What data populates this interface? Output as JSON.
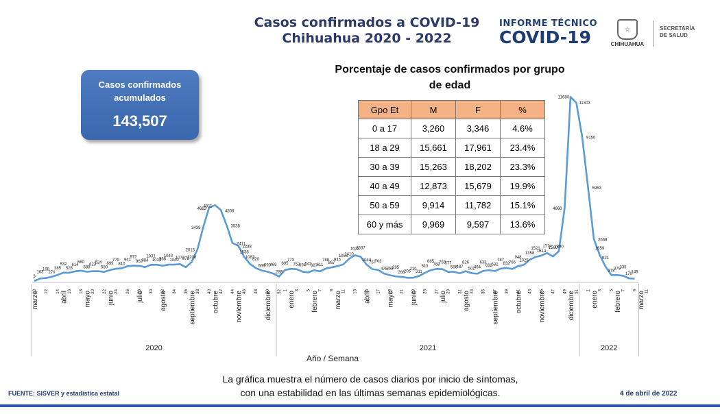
{
  "header": {
    "title_line1": "Casos confirmados a COVID-19",
    "title_line2": "Chihuahua 2020 - 2022",
    "informe_line1": "INFORME TÉCNICO",
    "informe_line2": "COVID-19",
    "logo_text": "CHIHUAHUA",
    "secretaria_line1": "SECRETARÍA",
    "secretaria_line2": "DE SALUD"
  },
  "total": {
    "label": "Casos confirmados acumulados",
    "value": "143,507"
  },
  "age_table": {
    "title": "Porcentaje de casos confirmados por grupo de edad",
    "headers": [
      "Gpo Et",
      "M",
      "F",
      "%"
    ],
    "rows": [
      [
        "0 a 17",
        "3,260",
        "3,346",
        "4.6%"
      ],
      [
        "18 a 29",
        "15,661",
        "17,961",
        "23.4%"
      ],
      [
        "30 a 39",
        "15,263",
        "18,202",
        "23.3%"
      ],
      [
        "40 a 49",
        "12,873",
        "15,679",
        "19.9%"
      ],
      [
        "50 a 59",
        "9,914",
        "11,782",
        "15.1%"
      ],
      [
        "60 y más",
        "9,969",
        "9,597",
        "13.6%"
      ]
    ]
  },
  "chart_data": {
    "type": "line",
    "title": "",
    "xlabel": "Año / Semana",
    "ylabel": "",
    "color": "#5b9bd5",
    "ylim": [
      0,
      11800
    ],
    "years": [
      {
        "label": "2020",
        "start": 0,
        "end": 42
      },
      {
        "label": "2021",
        "start": 42,
        "end": 94
      },
      {
        "label": "2022",
        "start": 94,
        "end": 107
      }
    ],
    "week_ticks": [
      {
        "i": 0,
        "t": "10"
      },
      {
        "i": 2,
        "t": "12"
      },
      {
        "i": 4,
        "t": "14"
      },
      {
        "i": 6,
        "t": "16"
      },
      {
        "i": 8,
        "t": "18"
      },
      {
        "i": 10,
        "t": "20"
      },
      {
        "i": 12,
        "t": "22"
      },
      {
        "i": 14,
        "t": "24"
      },
      {
        "i": 16,
        "t": "26"
      },
      {
        "i": 18,
        "t": "28"
      },
      {
        "i": 20,
        "t": "30"
      },
      {
        "i": 22,
        "t": "32"
      },
      {
        "i": 24,
        "t": "34"
      },
      {
        "i": 26,
        "t": "36"
      },
      {
        "i": 28,
        "t": "38"
      },
      {
        "i": 30,
        "t": "40"
      },
      {
        "i": 32,
        "t": "42"
      },
      {
        "i": 34,
        "t": "44"
      },
      {
        "i": 36,
        "t": "46"
      },
      {
        "i": 38,
        "t": "48"
      },
      {
        "i": 40,
        "t": "50"
      },
      {
        "i": 42,
        "t": "52"
      },
      {
        "i": 43,
        "t": "1"
      },
      {
        "i": 45,
        "t": "3"
      },
      {
        "i": 47,
        "t": "5"
      },
      {
        "i": 49,
        "t": "7"
      },
      {
        "i": 51,
        "t": "9"
      },
      {
        "i": 53,
        "t": "11"
      },
      {
        "i": 55,
        "t": "13"
      },
      {
        "i": 57,
        "t": "15"
      },
      {
        "i": 59,
        "t": "17"
      },
      {
        "i": 61,
        "t": "19"
      },
      {
        "i": 63,
        "t": "21"
      },
      {
        "i": 65,
        "t": "23"
      },
      {
        "i": 67,
        "t": "25"
      },
      {
        "i": 69,
        "t": "27"
      },
      {
        "i": 71,
        "t": "29"
      },
      {
        "i": 73,
        "t": "31"
      },
      {
        "i": 75,
        "t": "33"
      },
      {
        "i": 77,
        "t": "35"
      },
      {
        "i": 79,
        "t": "37"
      },
      {
        "i": 81,
        "t": "39"
      },
      {
        "i": 83,
        "t": "41"
      },
      {
        "i": 85,
        "t": "43"
      },
      {
        "i": 87,
        "t": "45"
      },
      {
        "i": 89,
        "t": "47"
      },
      {
        "i": 91,
        "t": "49"
      },
      {
        "i": 93,
        "t": "51"
      },
      {
        "i": 95,
        "t": "1"
      },
      {
        "i": 97,
        "t": "3"
      },
      {
        "i": 99,
        "t": "5"
      },
      {
        "i": 101,
        "t": "7"
      },
      {
        "i": 103,
        "t": "9"
      },
      {
        "i": 105,
        "t": "11"
      }
    ],
    "month_labels": [
      {
        "i": 0,
        "t": "marzo"
      },
      {
        "i": 5,
        "t": "abril"
      },
      {
        "i": 9,
        "t": "mayo"
      },
      {
        "i": 13,
        "t": "junio"
      },
      {
        "i": 18,
        "t": "julio"
      },
      {
        "i": 22,
        "t": "agosto"
      },
      {
        "i": 27,
        "t": "septiembre"
      },
      {
        "i": 31,
        "t": "octubre"
      },
      {
        "i": 35,
        "t": "noviembre"
      },
      {
        "i": 40,
        "t": "diciembre"
      },
      {
        "i": 44,
        "t": "enero"
      },
      {
        "i": 48,
        "t": "febrero"
      },
      {
        "i": 52,
        "t": "marzo"
      },
      {
        "i": 57,
        "t": "abril"
      },
      {
        "i": 61,
        "t": "mayo"
      },
      {
        "i": 65,
        "t": "junio"
      },
      {
        "i": 70,
        "t": "julio"
      },
      {
        "i": 74,
        "t": "agosto"
      },
      {
        "i": 79,
        "t": "septiembre"
      },
      {
        "i": 83,
        "t": "octubre"
      },
      {
        "i": 87,
        "t": "noviembre"
      },
      {
        "i": 92,
        "t": "diciembre"
      },
      {
        "i": 96,
        "t": "enero"
      },
      {
        "i": 100,
        "t": "febrero"
      },
      {
        "i": 104,
        "t": "marzo"
      }
    ],
    "values": [
      3,
      163,
      188,
      270,
      385,
      532,
      528,
      614,
      660,
      588,
      623,
      624,
      580,
      699,
      779,
      810,
      941,
      972,
      962,
      884,
      1031,
      1034,
      968,
      1040,
      1040,
      1073,
      878,
      1208,
      2015,
      3439,
      4663,
      4811,
      4506,
      3538,
      2411,
      2238,
      1538,
      1083,
      820,
      669,
      593,
      469,
      288,
      695,
      773,
      753,
      594,
      542,
      687,
      611,
      788,
      867,
      945,
      1053,
      1410,
      1633,
      1537,
      1044,
      757,
      703,
      475,
      368,
      295,
      266,
      206,
      210,
      311,
      513,
      685,
      768,
      755,
      577,
      586,
      487,
      626,
      501,
      464,
      633,
      692,
      632,
      787,
      832,
      766,
      948,
      1025,
      1358,
      1521,
      1614,
      1774,
      1560,
      1890,
      4660,
      11680,
      11303,
      9150,
      5963,
      2668,
      1659,
      921,
      378,
      379,
      335,
      170,
      149
    ],
    "point_labels": [
      "3",
      "163",
      "188",
      "270",
      "385",
      "532",
      "528",
      "614",
      "660",
      "588",
      "623",
      "624",
      "580",
      "699",
      "779",
      "810",
      "941",
      "972",
      "962",
      "884",
      "1031",
      "1034",
      "968",
      "1040",
      "1040",
      "1073",
      "878",
      "1208",
      "2015",
      "3439",
      "4663",
      "4811",
      "4506",
      "3538",
      "2411",
      "2238",
      "1538",
      "1083",
      "820",
      "669",
      "593",
      "469",
      "288",
      "695",
      "773",
      "753",
      "594",
      "542",
      "687",
      "611",
      "788",
      "867",
      "945",
      "1053",
      "1410",
      "1633",
      "1537",
      "1044",
      "757",
      "703",
      "475",
      "368",
      "295",
      "266",
      "206",
      "210",
      "311",
      "513",
      "685",
      "768",
      "755",
      "577",
      "586",
      "487",
      "626",
      "501",
      "464",
      "633",
      "692",
      "632",
      "787",
      "832",
      "766",
      "948",
      "1025",
      "1358",
      "1521",
      "1614",
      "1774",
      "1560",
      "1890",
      "4660",
      "11680",
      "11303",
      "9150",
      "5963",
      "2668",
      "1659",
      "921",
      "378",
      "379",
      "335",
      "170",
      "149"
    ]
  },
  "footer": {
    "note_line1": "La gráfica muestra el número de casos diarios por inicio de síntomas,",
    "note_line2": "con una estabilidad en las últimas semanas epidemiológicas.",
    "source": "FUENTE: SISVER y estadística estatal",
    "date": "4 de abril de 2022"
  }
}
